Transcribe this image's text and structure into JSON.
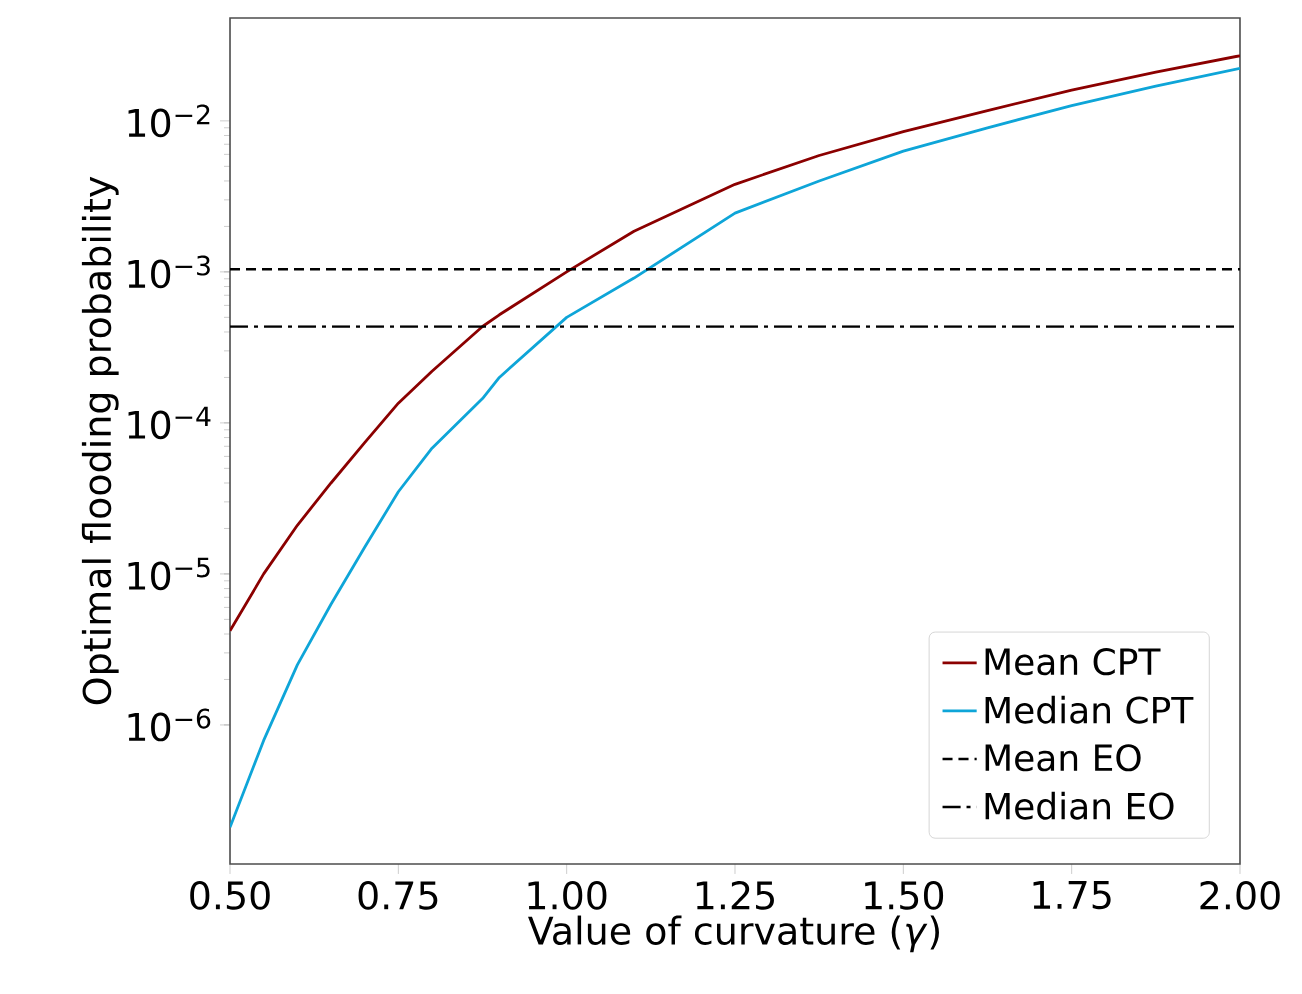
{
  "chart_data": {
    "type": "line",
    "xlabel": "Value of curvature (*γ*)",
    "ylabel": "Optimal flooding probability",
    "x": [
      0.5,
      0.55,
      0.6,
      0.65,
      0.7,
      0.75,
      0.8,
      0.875,
      0.9,
      1.0,
      1.1,
      1.25,
      1.375,
      1.5,
      1.625,
      1.75,
      1.875,
      2.0
    ],
    "series": [
      {
        "name": "Mean CPT",
        "color": "#8b0000",
        "values": [
          4.2e-06,
          1e-05,
          2.1e-05,
          4e-05,
          7.4e-05,
          0.000135,
          0.00022,
          0.000435,
          0.00052,
          0.001,
          0.00186,
          0.0038,
          0.0059,
          0.0085,
          0.0117,
          0.016,
          0.021,
          0.027
        ]
      },
      {
        "name": "Median CPT",
        "color": "#0ea5d8",
        "values": [
          2.1e-07,
          7.9e-07,
          2.5e-06,
          6.3e-06,
          1.5e-05,
          3.5e-05,
          6.8e-05,
          0.000145,
          0.0002,
          0.0005,
          0.00091,
          0.00245,
          0.004,
          0.0063,
          0.009,
          0.0126,
          0.017,
          0.0223
        ]
      }
    ],
    "ref_lines": [
      {
        "axis": "y",
        "value": 0.00104,
        "label": "Mean EO",
        "color": "#000000",
        "line_style": "dashed"
      },
      {
        "axis": "y",
        "value": 0.000435,
        "label": "Median EO",
        "color": "#000000",
        "line_style": "dashdot"
      }
    ],
    "log": "y",
    "legend": "bottom right",
    "line_style": "solid",
    "marker": "none",
    "xlim": [
      0.5,
      2.0
    ],
    "ylim": [
      1.2e-07,
      0.048
    ],
    "xticks": [
      {
        "value": 0.5,
        "label": "0.50"
      },
      {
        "value": 0.75,
        "label": "0.75"
      },
      {
        "value": 1.0,
        "label": "1.00"
      },
      {
        "value": 1.25,
        "label": "1.25"
      },
      {
        "value": 1.5,
        "label": "1.50"
      },
      {
        "value": 1.75,
        "label": "1.75"
      },
      {
        "value": 2.0,
        "label": "2.00"
      }
    ],
    "yticks": [
      {
        "value": 1e-06,
        "label": "10$^{−6}$"
      },
      {
        "value": 1e-05,
        "label": "10$^{−5}$"
      },
      {
        "value": 0.0001,
        "label": "10$^{−4}$"
      },
      {
        "value": 0.001,
        "label": "10$^{−3}$"
      },
      {
        "value": 0.01,
        "label": "10$^{−2}$"
      }
    ]
  }
}
